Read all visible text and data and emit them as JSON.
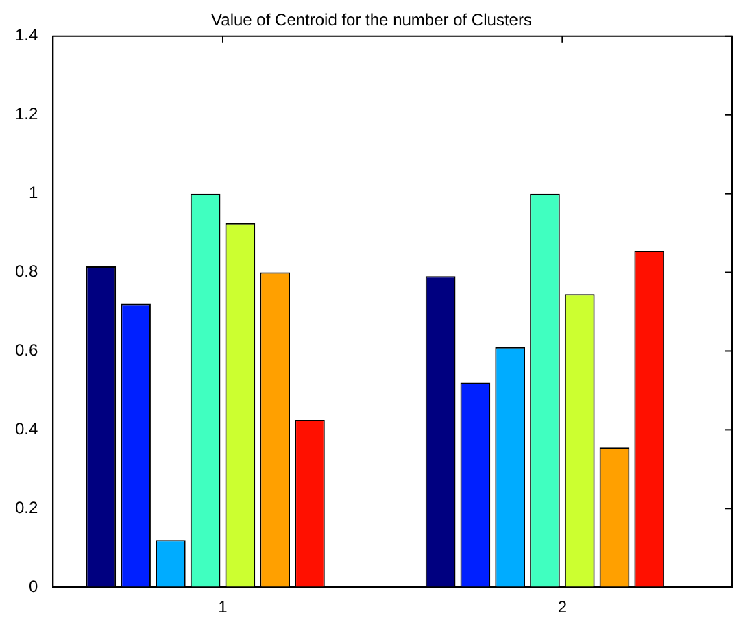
{
  "chart_data": {
    "type": "bar",
    "title": "Value of Centroid for the number of Clusters",
    "categories": [
      "1",
      "2"
    ],
    "series": [
      {
        "color": "#000080",
        "values": [
          0.815,
          0.79
        ]
      },
      {
        "color": "#0020ff",
        "values": [
          0.72,
          0.52
        ]
      },
      {
        "color": "#00acff",
        "values": [
          0.12,
          0.61
        ]
      },
      {
        "color": "#40ffc0",
        "values": [
          1.0,
          1.0
        ]
      },
      {
        "color": "#ccff30",
        "values": [
          0.925,
          0.745
        ]
      },
      {
        "color": "#ffa000",
        "values": [
          0.8,
          0.355
        ]
      },
      {
        "color": "#ff1000",
        "values": [
          0.425,
          0.855
        ]
      },
      {
        "color": "#800000",
        "values": [
          0,
          0
        ]
      }
    ],
    "ylim": [
      0,
      1.4
    ],
    "yticks": [
      0,
      0.2,
      0.4,
      0.6,
      0.8,
      1,
      1.2,
      1.4
    ],
    "grid": false,
    "legend": false
  }
}
